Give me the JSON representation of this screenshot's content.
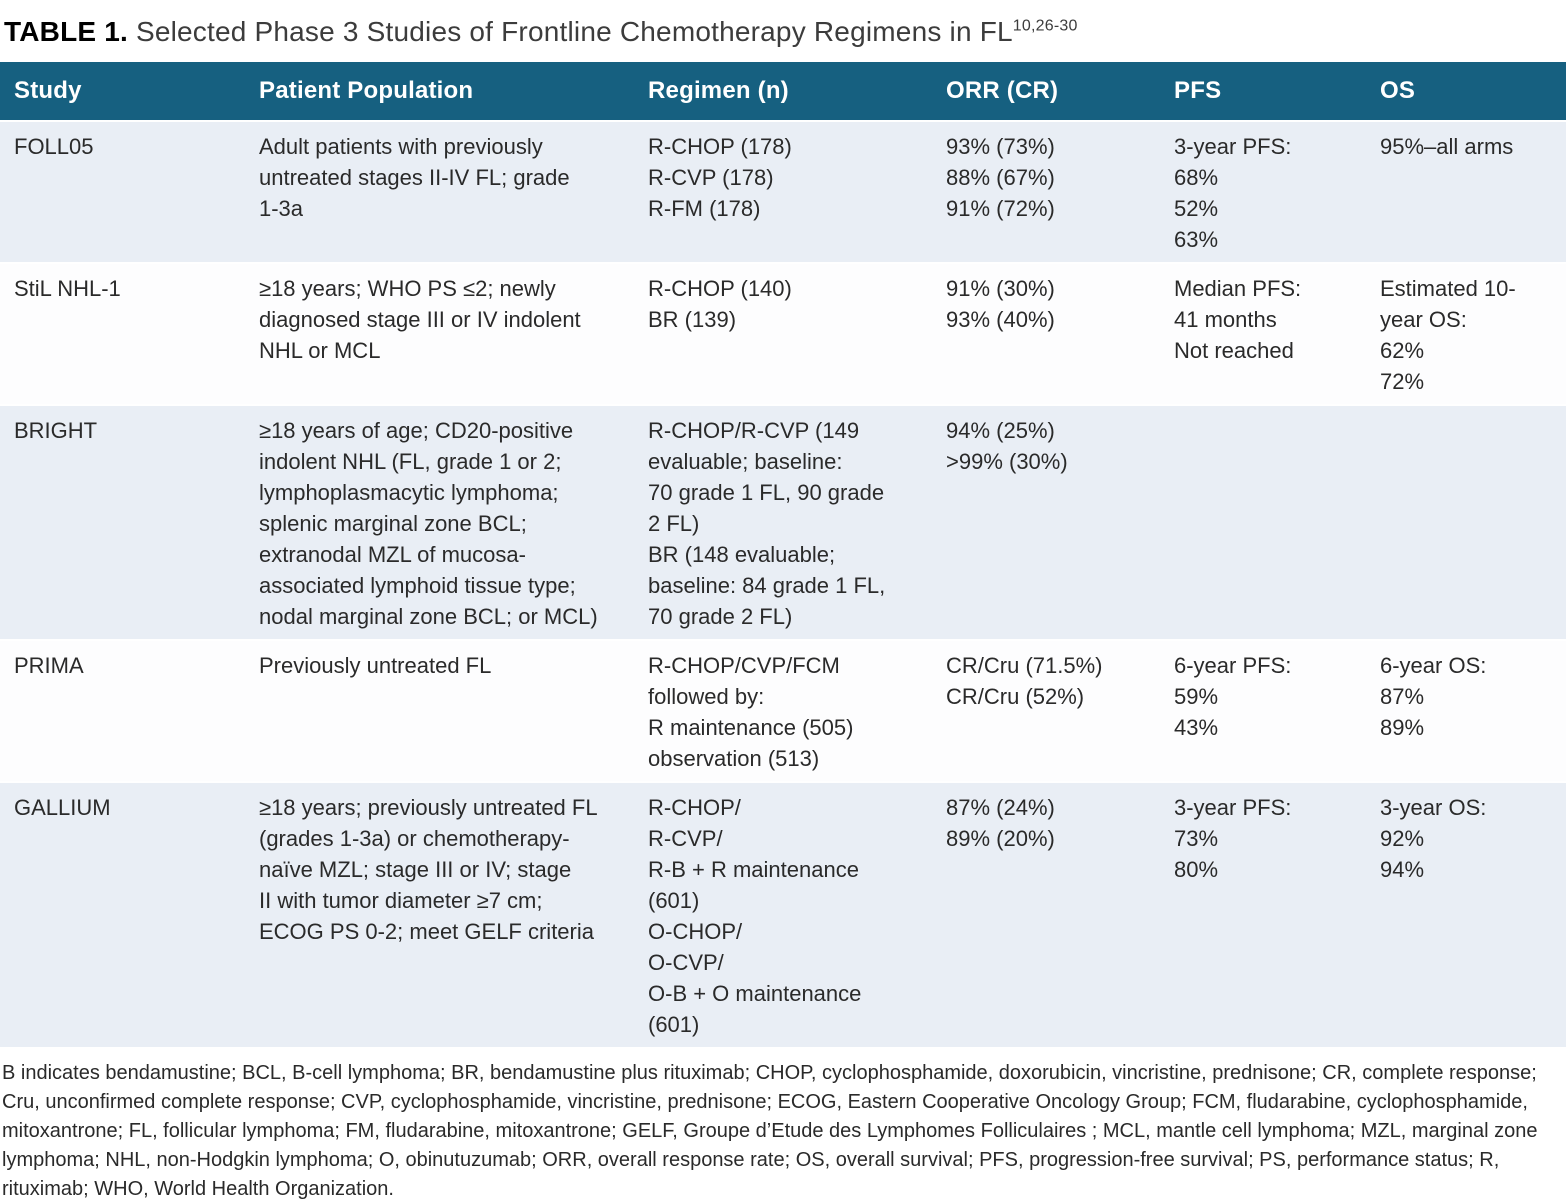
{
  "title": {
    "bold": "TABLE 1.",
    "rest": " Selected Phase 3 Studies of Frontline Chemotherapy Regimens in FL",
    "superscript": "10,26-30"
  },
  "colors": {
    "header_bg": "#166080",
    "band_light": "#e9eef5",
    "band_white": "#fdfdfe",
    "header_text": "#ffffff",
    "body_text": "#2a2a2a"
  },
  "table": {
    "columns": [
      "Study",
      "Patient Population",
      "Regimen (n)",
      "ORR (CR)",
      "PFS",
      "OS"
    ],
    "rows": [
      {
        "study": [
          "FOLL05"
        ],
        "population": [
          "Adult patients with previously",
          "untreated stages II-IV FL; grade",
          "1-3a"
        ],
        "regimen": [
          "R-CHOP (178)",
          "R-CVP (178)",
          "R-FM (178)"
        ],
        "orr": [
          "93% (73%)",
          "88% (67%)",
          "91% (72%)"
        ],
        "pfs": [
          "3-year PFS:",
          "68%",
          "52%",
          "63%"
        ],
        "os": [
          "95%–all arms"
        ]
      },
      {
        "study": [
          "StiL NHL-1"
        ],
        "population": [
          "≥18 years; WHO PS ≤2; newly",
          "diagnosed stage III or IV indolent",
          "NHL or MCL"
        ],
        "regimen": [
          "R-CHOP (140)",
          "BR (139)"
        ],
        "orr": [
          "91% (30%)",
          "93% (40%)"
        ],
        "pfs": [
          "Median PFS:",
          "41 months",
          "Not reached"
        ],
        "os": [
          "Estimated 10-",
          "year OS:",
          "62%",
          "72%"
        ]
      },
      {
        "study": [
          "BRIGHT"
        ],
        "population": [
          "≥18 years of age; CD20-positive",
          "indolent NHL (FL, grade 1 or 2;",
          "lymphoplasmacytic lymphoma;",
          "splenic marginal zone BCL;",
          "extranodal MZL of mucosa-",
          "associated lymphoid tissue type;",
          "nodal marginal zone BCL; or MCL)"
        ],
        "regimen": [
          "R-CHOP/R-CVP (149",
          "evaluable; baseline:",
          "70 grade 1 FL, 90 grade",
          "2 FL)",
          "BR (148 evaluable;",
          "baseline: 84 grade 1 FL,",
          "70 grade 2 FL)"
        ],
        "orr": [
          "94% (25%)",
          ">99% (30%)"
        ],
        "pfs": [],
        "os": []
      },
      {
        "study": [
          "PRIMA"
        ],
        "population": [
          "Previously untreated FL"
        ],
        "regimen": [
          "R-CHOP/CVP/FCM",
          "followed by:",
          "R maintenance (505)",
          "observation (513)"
        ],
        "orr": [
          "CR/Cru (71.5%)",
          "CR/Cru (52%)"
        ],
        "pfs": [
          "6-year PFS:",
          "59%",
          "43%"
        ],
        "os": [
          "6-year OS:",
          "87%",
          "89%"
        ]
      },
      {
        "study": [
          "GALLIUM"
        ],
        "population": [
          "≥18 years; previously untreated FL",
          "(grades 1-3a) or chemotherapy-",
          "naïve MZL; stage III or IV; stage",
          "II with tumor diameter ≥7 cm;",
          "ECOG PS 0-2; meet GELF criteria"
        ],
        "regimen": [
          "R-CHOP/",
          "R-CVP/",
          "R-B + R maintenance",
          "(601)",
          "O-CHOP/",
          "O-CVP/",
          "O-B + O maintenance",
          "(601)"
        ],
        "orr": [
          "87% (24%)",
          "89% (20%)"
        ],
        "pfs": [
          "3-year PFS:",
          "73%",
          "80%"
        ],
        "os": [
          "3-year OS:",
          "92%",
          "94%"
        ]
      }
    ]
  },
  "footnote": "B indicates bendamustine; BCL, B-cell lymphoma; BR, bendamustine plus rituximab; CHOP, cyclophosphamide, doxorubicin, vincristine, prednisone; CR, complete response; Cru, unconfirmed complete response; CVP, cyclophosphamide, vincristine, prednisone; ECOG, Eastern Cooperative Oncology Group; FCM, fludarabine, cyclophosphamide, mitoxantrone; FL, follicular lymphoma; FM, fludarabine, mitoxantrone; GELF, Groupe d’Etude des Lymphomes Folliculaires ; MCL, mantle cell lymphoma; MZL, marginal zone lymphoma; NHL, non-Hodgkin lymphoma; O, obinutuzumab; ORR, overall response rate; OS, overall survival; PFS, progression-free survival; PS, performance status; R, rituximab; WHO, World Health Organization."
}
